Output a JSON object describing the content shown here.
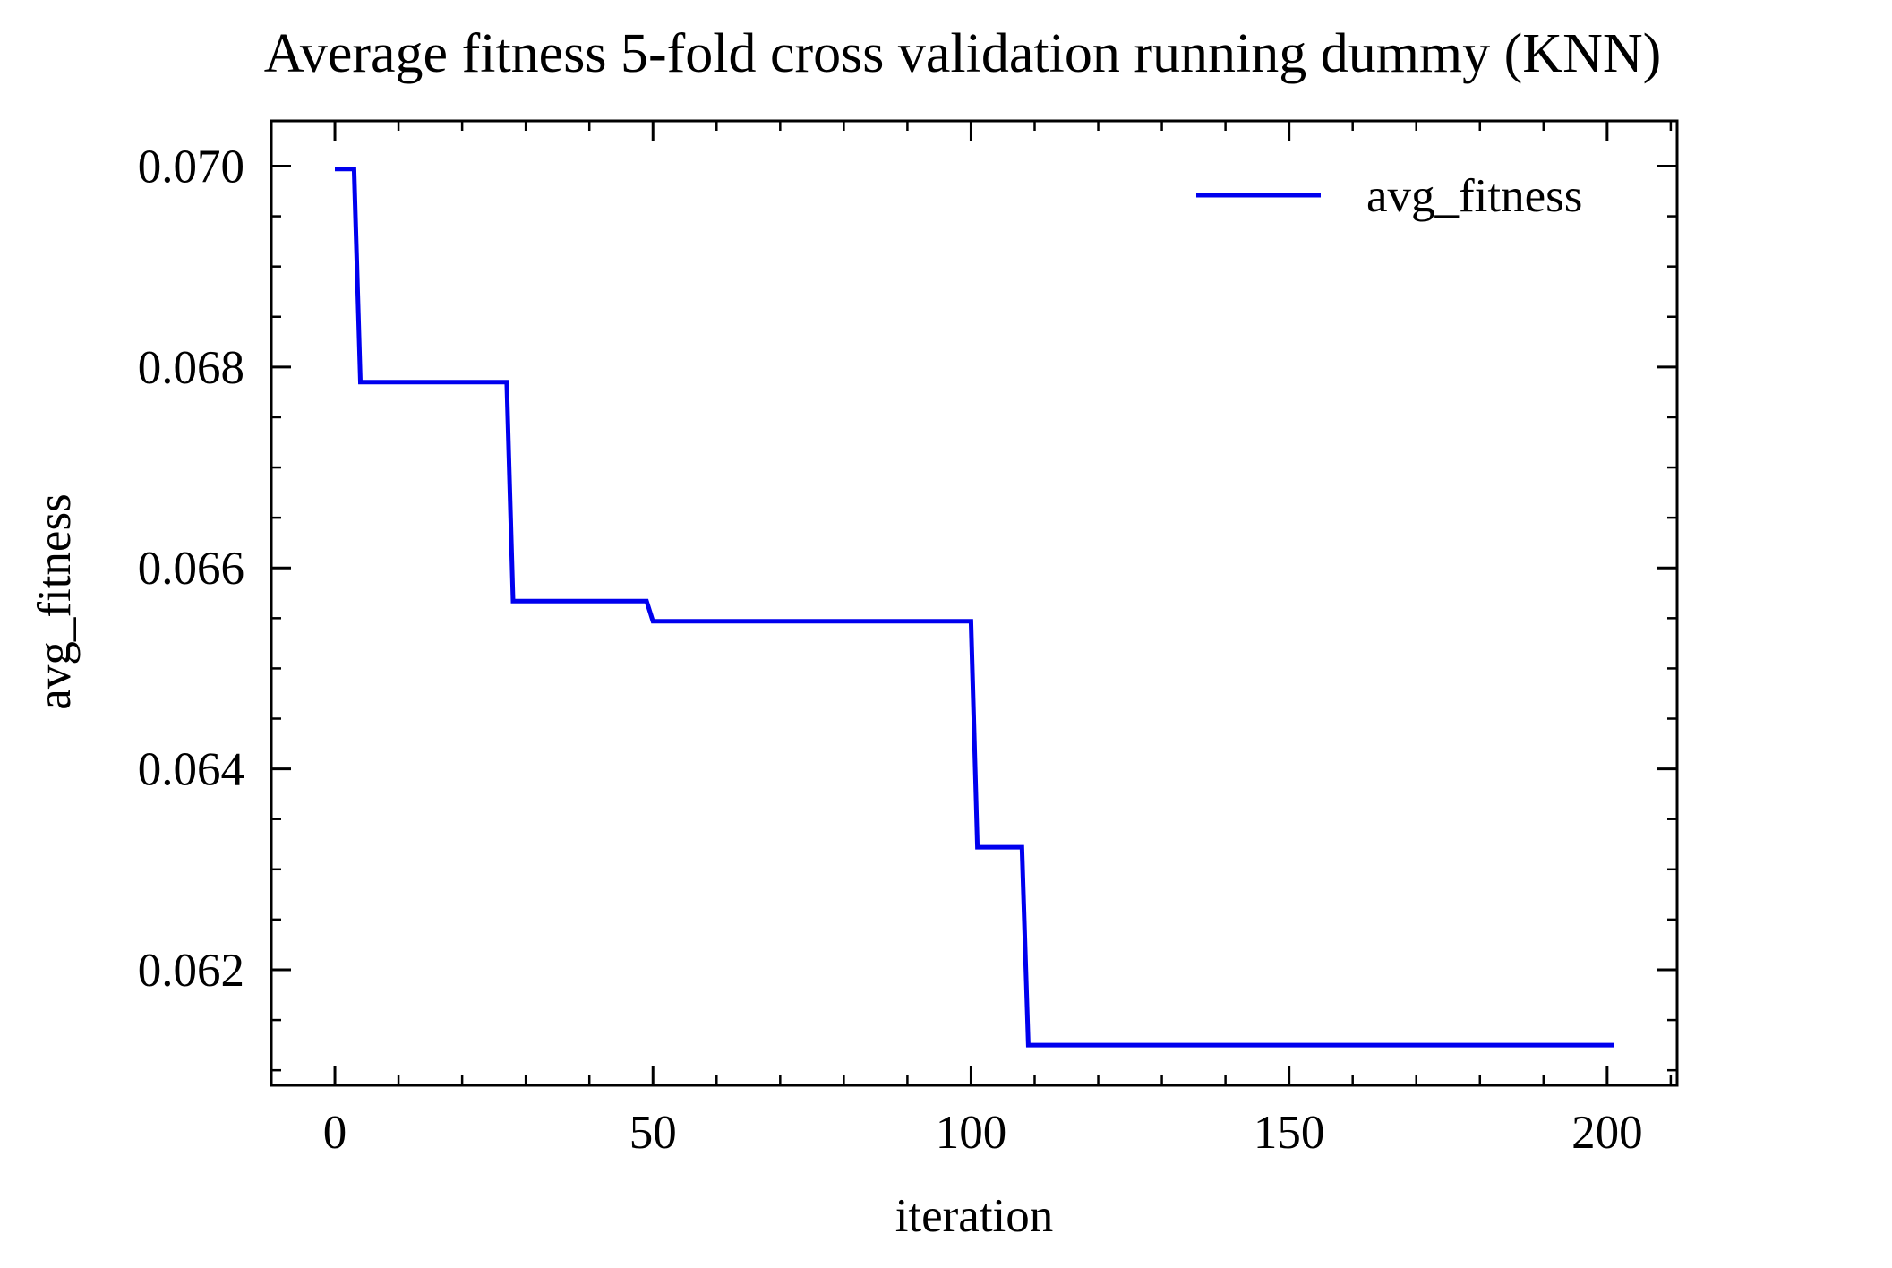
{
  "colors": {
    "background": "#ffffff",
    "axes": "#000000",
    "series": "#0000ee"
  },
  "chart_data": {
    "type": "line",
    "title": "Average fitness 5-fold cross validation running dummy (KNN)",
    "xlabel": "iteration",
    "ylabel": "avg_fitness",
    "xlim": [
      -10,
      211
    ],
    "ylim": [
      0.06085,
      0.07045
    ],
    "xticks": [
      0,
      50,
      100,
      150,
      200
    ],
    "xtick_labels": [
      "0",
      "50",
      "100",
      "150",
      "200"
    ],
    "xminor_step": 10,
    "yticks": [
      0.062,
      0.064,
      0.066,
      0.068,
      0.07
    ],
    "ytick_labels": [
      "0.062",
      "0.064",
      "0.066",
      "0.068",
      "0.070"
    ],
    "yminor_step": 0.0005,
    "grid": false,
    "legend": {
      "position": "top-right",
      "entries": [
        "avg_fitness"
      ]
    },
    "series": [
      {
        "name": "avg_fitness",
        "x": [
          0,
          3,
          4,
          27,
          28,
          49,
          50,
          100,
          101,
          108,
          109,
          201
        ],
        "y": [
          0.06997,
          0.06997,
          0.06785,
          0.06785,
          0.06567,
          0.06567,
          0.06547,
          0.06547,
          0.06322,
          0.06322,
          0.06125,
          0.06125
        ]
      }
    ]
  }
}
